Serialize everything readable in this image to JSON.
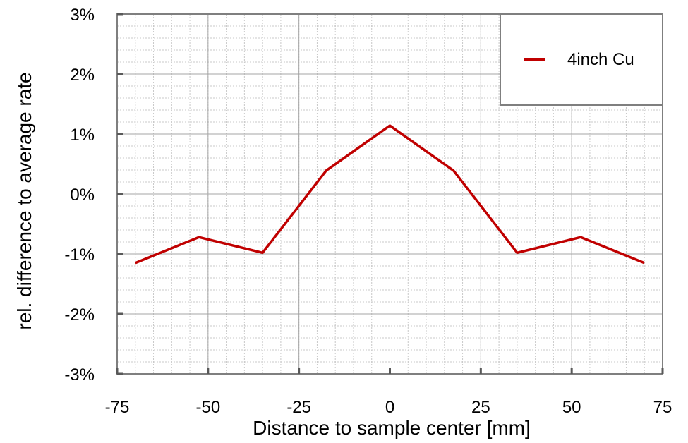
{
  "chart_data": {
    "type": "line",
    "title": "",
    "xlabel": "Distance to sample center [mm]",
    "ylabel": "rel. difference to average rate",
    "xlim": [
      -75,
      75
    ],
    "ylim": [
      -3,
      3
    ],
    "x_ticks": [
      -75,
      -50,
      -25,
      0,
      25,
      50,
      75
    ],
    "x_tick_labels": [
      "-75",
      "-50",
      "-25",
      "0",
      "25",
      "50",
      "75"
    ],
    "y_ticks": [
      3,
      2,
      1,
      0,
      -1,
      -2,
      -3
    ],
    "y_tick_labels": [
      "3%",
      "2%",
      "1%",
      "0%",
      "-1%",
      "-2%",
      "-3%"
    ],
    "grid": true,
    "legend_position": "top-right",
    "series": [
      {
        "name": "4inch Cu",
        "color": "#c00000",
        "x": [
          -70,
          -52.5,
          -35,
          -17.5,
          0,
          17.5,
          35,
          52.5,
          70
        ],
        "y": [
          -1.15,
          -0.72,
          -0.98,
          0.39,
          1.14,
          0.39,
          -0.98,
          -0.72,
          -1.15
        ]
      }
    ]
  }
}
